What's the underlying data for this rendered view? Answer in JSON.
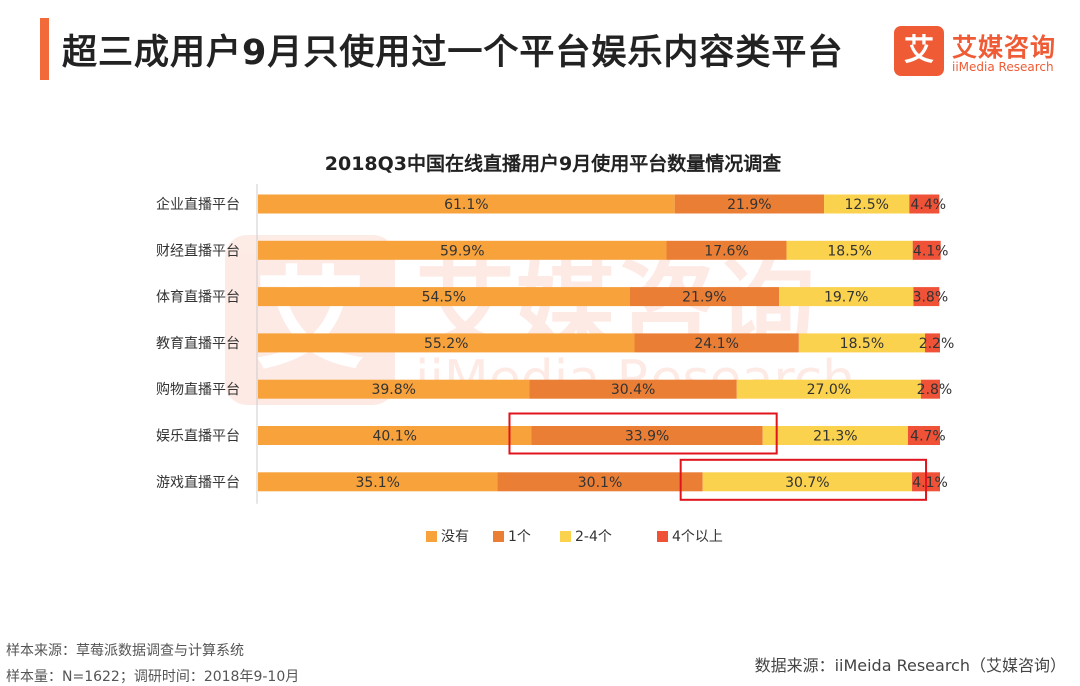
{
  "header": {
    "title": "超三成用户9月只使用过一个平台娱乐内容类平台"
  },
  "logo": {
    "mark": "艾",
    "name_cn": "艾媒咨询",
    "name_en": "iiMedia Research"
  },
  "colors": {
    "accent": "#f26a3a",
    "none": "#f7a23b",
    "one": "#ea7e34",
    "two_to_four": "#fbd24e",
    "four_plus": "#ef5236",
    "highlight": "#e0141c"
  },
  "chart_data": {
    "type": "bar",
    "orientation": "horizontal",
    "stacked": true,
    "title": "2018Q3中国在线直播用户9月使用平台数量情况调查",
    "categories": [
      "企业直播平台",
      "财经直播平台",
      "体育直播平台",
      "教育直播平台",
      "购物直播平台",
      "娱乐直播平台",
      "游戏直播平台"
    ],
    "series": [
      {
        "name": "没有",
        "values": [
          61.1,
          59.9,
          54.5,
          55.2,
          39.8,
          40.1,
          35.1
        ]
      },
      {
        "name": "1个",
        "values": [
          21.9,
          17.6,
          21.9,
          24.1,
          30.4,
          33.9,
          30.1
        ]
      },
      {
        "name": "2-4个",
        "values": [
          12.5,
          18.5,
          19.7,
          18.5,
          27.0,
          21.3,
          30.7
        ]
      },
      {
        "name": "4个以上",
        "values": [
          4.4,
          4.1,
          3.8,
          2.2,
          2.8,
          4.7,
          4.1
        ]
      }
    ],
    "value_suffix": "%",
    "xlim": [
      0,
      100
    ],
    "legend_position": "bottom",
    "highlights": [
      {
        "category": "娱乐直播平台",
        "series": "1个"
      },
      {
        "category": "游戏直播平台",
        "series": "2-4个"
      }
    ]
  },
  "footer": {
    "sample_source": "样本来源：草莓派数据调查与计算系统",
    "sample_size": "样本量：N=1622；调研时间：2018年9-10月",
    "data_source": "数据来源：iiMeida Research（艾媒咨询）"
  }
}
